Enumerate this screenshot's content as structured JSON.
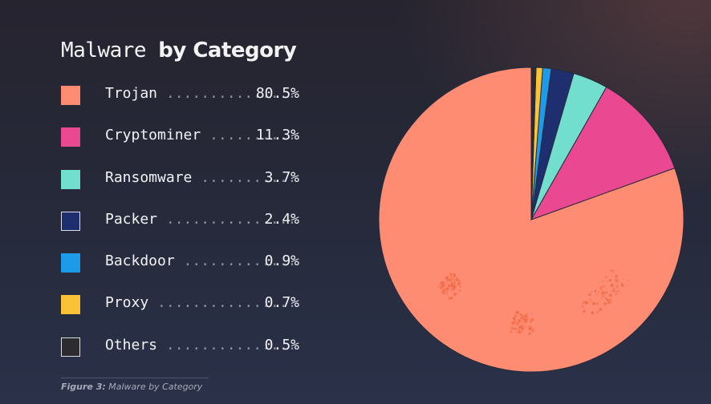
{
  "title": {
    "regular": "Malware",
    "bold": "by Category"
  },
  "caption": {
    "label": "Figure 3:",
    "text": "Malware by Category"
  },
  "chart_data": {
    "type": "pie",
    "title": "Malware by Category",
    "legend_position": "left",
    "slices": [
      {
        "label": "Trojan",
        "value": 80.5,
        "display": "80.5%",
        "color": "#fe8c73",
        "border": "#fe8c73"
      },
      {
        "label": "Cryptominer",
        "value": 11.3,
        "display": "11.3%",
        "color": "#ea4891",
        "border": "#ea4891"
      },
      {
        "label": "Ransomware",
        "value": 3.7,
        "display": "3.7%",
        "color": "#72decd",
        "border": "#72decd"
      },
      {
        "label": "Packer",
        "value": 2.4,
        "display": "2.4%",
        "color": "#1f2e6e",
        "border": "#d9dbe6"
      },
      {
        "label": "Backdoor",
        "value": 0.9,
        "display": "0.9%",
        "color": "#1e9be8",
        "border": "#1e9be8"
      },
      {
        "label": "Proxy",
        "value": 0.7,
        "display": "0.7%",
        "color": "#fcc237",
        "border": "#fcc237"
      },
      {
        "label": "Others",
        "value": 0.5,
        "display": "0.5%",
        "color": "#2b2b30",
        "border": "#d9dbe6"
      }
    ]
  }
}
